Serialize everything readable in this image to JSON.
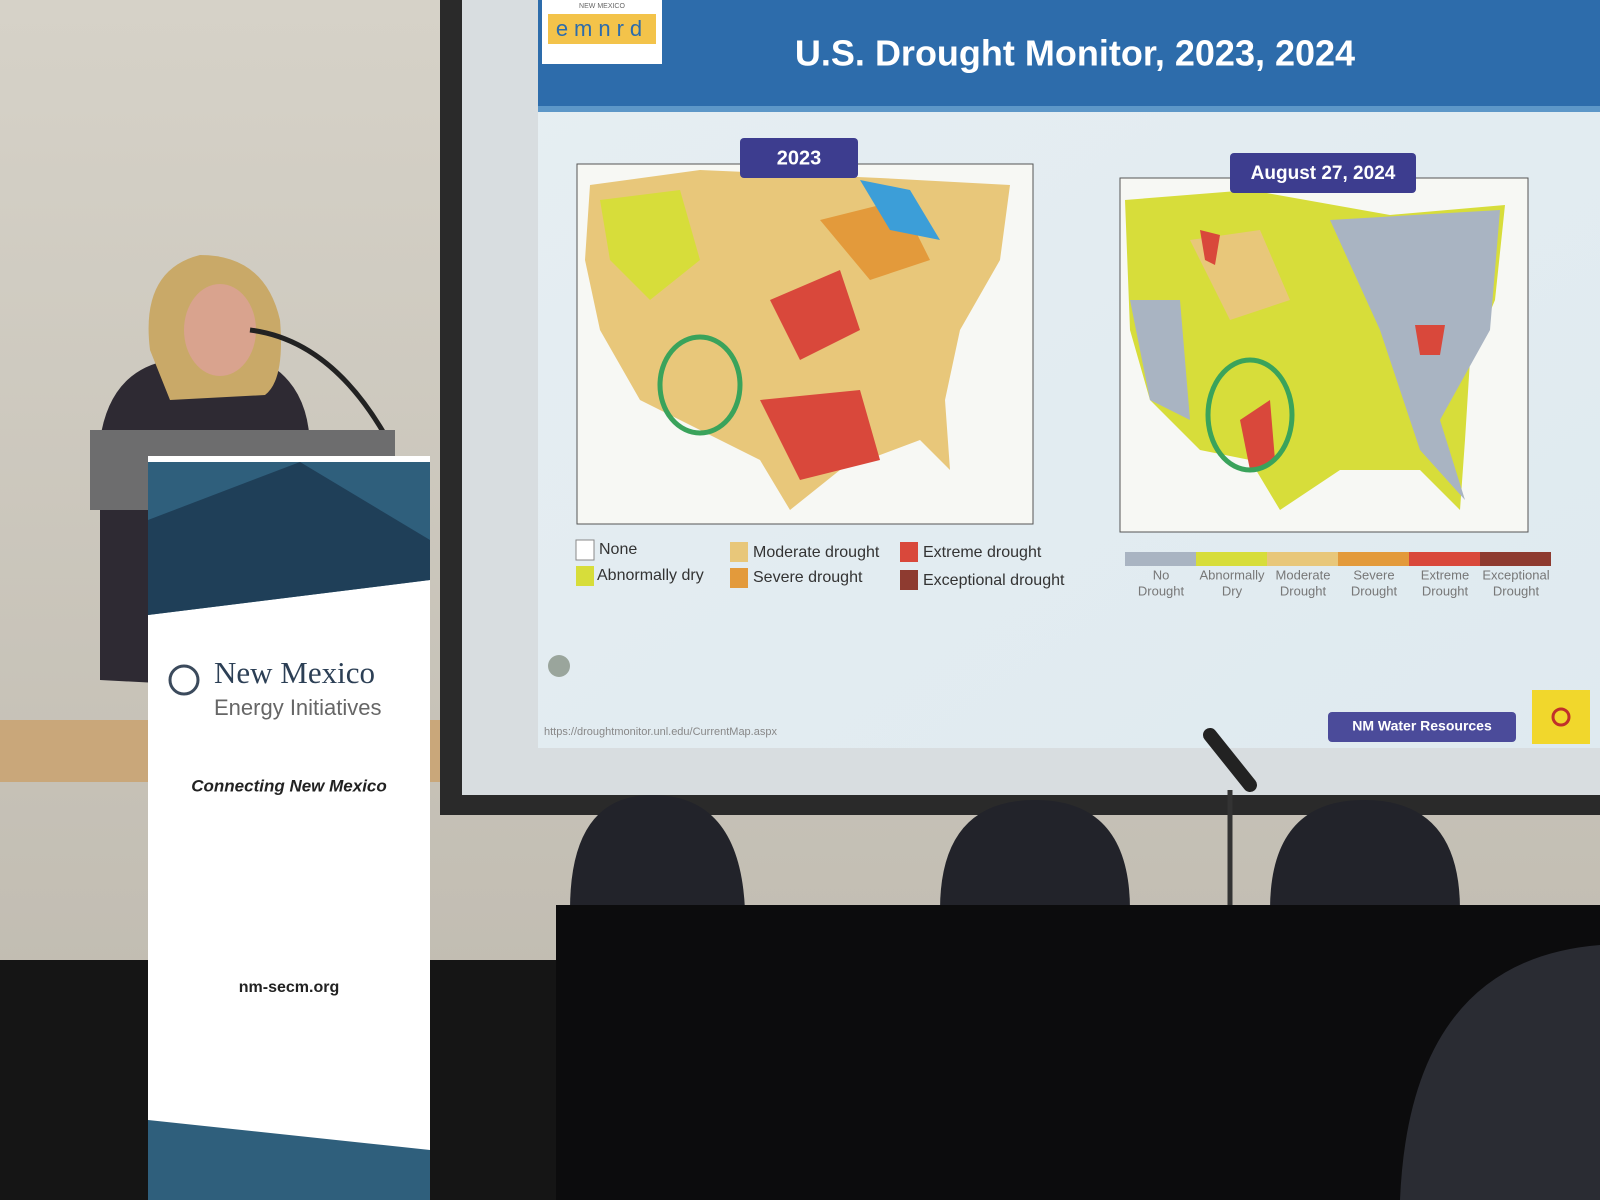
{
  "slide": {
    "logo": {
      "top": "NEW MEXICO",
      "letters": "emnrd"
    },
    "title": "U.S. Drought Monitor, 2023, 2024",
    "left_map": {
      "label": "2023",
      "legend": [
        "None",
        "Abnormally dry",
        "Moderate drought",
        "Severe drought",
        "Extreme drought",
        "Exceptional drought"
      ]
    },
    "right_map": {
      "label": "August 27, 2024",
      "legend": [
        [
          "No",
          "Drought"
        ],
        [
          "Abnormally",
          "Dry"
        ],
        [
          "Moderate",
          "Drought"
        ],
        [
          "Severe",
          "Drought"
        ],
        [
          "Extreme",
          "Drought"
        ],
        [
          "Exceptional",
          "Drought"
        ]
      ]
    },
    "url": "https://droughtmonitor.unl.edu/CurrentMap.aspx",
    "badge": "NM Water Resources"
  },
  "banner": {
    "name_line1": "New Mexico",
    "name_line2": "Energy Initiatives",
    "tagline": "Connecting New Mexico",
    "website": "nm-secm.org"
  }
}
